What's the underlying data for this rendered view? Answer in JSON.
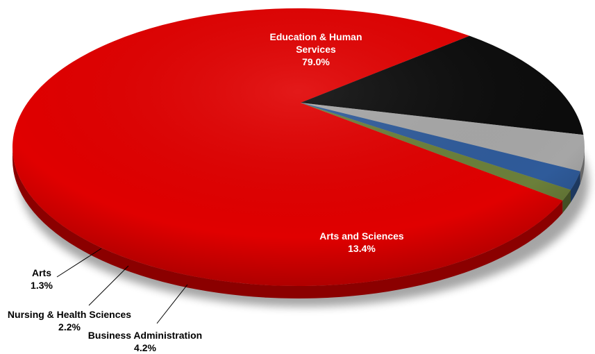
{
  "chart_data": {
    "type": "pie",
    "categories": [
      "Education & Human Services",
      "Arts and Sciences",
      "Business Administration",
      "Nursing & Health Sciences",
      "Arts"
    ],
    "values": [
      79.0,
      13.4,
      4.2,
      2.2,
      1.3
    ],
    "value_labels": [
      "79.0%",
      "13.4%",
      "4.2%",
      "2.2%",
      "1.3%"
    ],
    "label_lines": {
      "Education & Human Services": [
        "Education & Human",
        "Services"
      ],
      "Arts and Sciences": [
        "Arts and Sciences"
      ],
      "Business Administration": [
        "Business Administration"
      ],
      "Nursing & Health Sciences": [
        "Nursing & Health Sciences"
      ],
      "Arts": [
        "Arts"
      ]
    },
    "colors": [
      "#e00000",
      "#0c0c0c",
      "#a6a6a6",
      "#2f5b9a",
      "#6b7f3a"
    ],
    "title": "",
    "legend": "none",
    "style": "3d-tilted"
  }
}
